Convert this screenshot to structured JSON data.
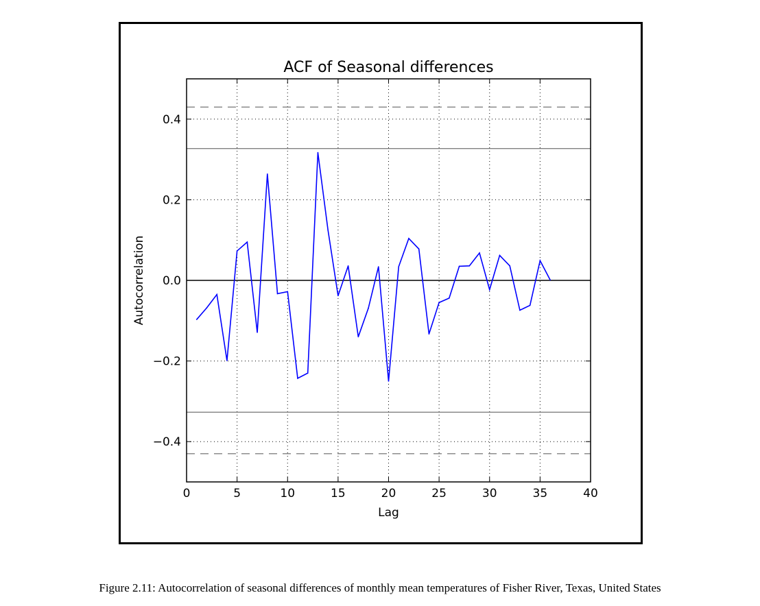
{
  "chart_data": {
    "type": "line",
    "title": "ACF of Seasonal differences",
    "xlabel": "Lag",
    "ylabel": "Autocorrelation",
    "xlim": [
      0,
      40
    ],
    "ylim": [
      -0.5,
      0.5
    ],
    "xticks": [
      0,
      5,
      10,
      15,
      20,
      25,
      30,
      35,
      40
    ],
    "xtick_labels": [
      "0",
      "5",
      "10",
      "15",
      "20",
      "25",
      "30",
      "35",
      "40"
    ],
    "yticks": [
      -0.4,
      -0.2,
      0.0,
      0.2,
      0.4
    ],
    "ytick_labels": [
      "−0.4",
      "−0.2",
      "0.0",
      "0.2",
      "0.4"
    ],
    "grid": true,
    "series": [
      {
        "color": "#0000ff",
        "x": [
          1,
          2,
          3,
          4,
          5,
          6,
          7,
          8,
          9,
          10,
          11,
          12,
          13,
          14,
          15,
          16,
          17,
          18,
          19,
          20,
          21,
          22,
          23,
          24,
          25,
          26,
          27,
          28,
          29,
          30,
          31,
          32,
          33,
          34,
          35,
          36
        ],
        "values": [
          -0.097,
          -0.068,
          -0.035,
          -0.199,
          0.073,
          0.095,
          -0.129,
          0.264,
          -0.033,
          -0.028,
          -0.243,
          -0.23,
          0.317,
          0.125,
          -0.038,
          0.036,
          -0.14,
          -0.069,
          0.034,
          -0.25,
          0.034,
          0.104,
          0.078,
          -0.133,
          -0.055,
          -0.044,
          0.035,
          0.036,
          0.068,
          -0.023,
          0.062,
          0.036,
          -0.074,
          -0.062,
          0.049,
          0.001
        ]
      }
    ],
    "reference_lines": {
      "zero": {
        "y": 0.0,
        "color": "#000000",
        "style": "solid"
      },
      "confidence_95": {
        "y": [
          0.327,
          -0.327
        ],
        "color": "#808080",
        "style": "solid"
      },
      "confidence_99": {
        "y": [
          0.43,
          -0.43
        ],
        "color": "#808080",
        "style": "dashed"
      }
    }
  },
  "caption": "Figure 2.11: Autocorrelation of seasonal differences of monthly mean temperatures of Fisher River, Texas, United States"
}
